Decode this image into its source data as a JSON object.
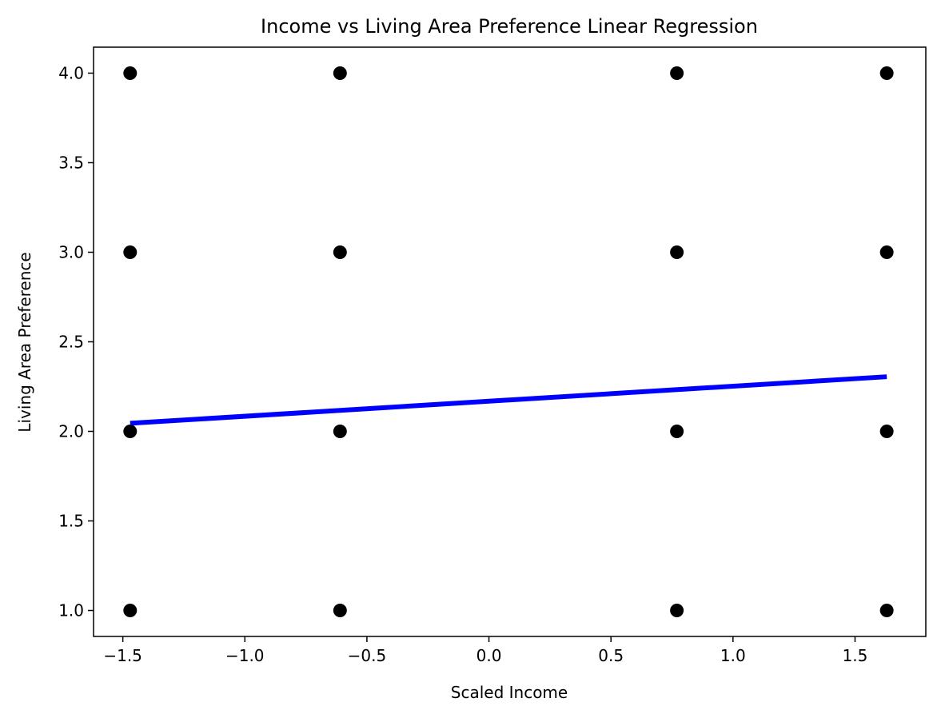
{
  "chart_data": {
    "type": "scatter",
    "title": "Income vs Living Area Preference Linear Regression",
    "xlabel": "Scaled Income",
    "ylabel": "Living Area Preference",
    "xlim": [
      -1.62,
      1.79
    ],
    "ylim": [
      0.855,
      4.145
    ],
    "x_ticks": [
      -1.5,
      -1.0,
      -0.5,
      0.0,
      0.5,
      1.0,
      1.5
    ],
    "x_tick_labels": [
      "−1.5",
      "−1.0",
      "−0.5",
      "0.0",
      "0.5",
      "1.0",
      "1.5"
    ],
    "y_ticks": [
      1.0,
      1.5,
      2.0,
      2.5,
      3.0,
      3.5,
      4.0
    ],
    "y_tick_labels": [
      "1.0",
      "1.5",
      "2.0",
      "2.5",
      "3.0",
      "3.5",
      "4.0"
    ],
    "grid": false,
    "points": {
      "color": "#000000",
      "x": [
        -1.47,
        -1.47,
        -1.47,
        -1.47,
        -0.61,
        -0.61,
        -0.61,
        -0.61,
        0.77,
        0.77,
        0.77,
        0.77,
        1.63,
        1.63,
        1.63,
        1.63
      ],
      "y": [
        4.0,
        3.0,
        2.0,
        1.0,
        4.0,
        3.0,
        2.0,
        1.0,
        4.0,
        3.0,
        2.0,
        1.0,
        4.0,
        3.0,
        2.0,
        1.0
      ]
    },
    "regression_line": {
      "color": "#0000ff",
      "x": [
        -1.47,
        1.63
      ],
      "y": [
        2.045,
        2.305
      ]
    }
  }
}
